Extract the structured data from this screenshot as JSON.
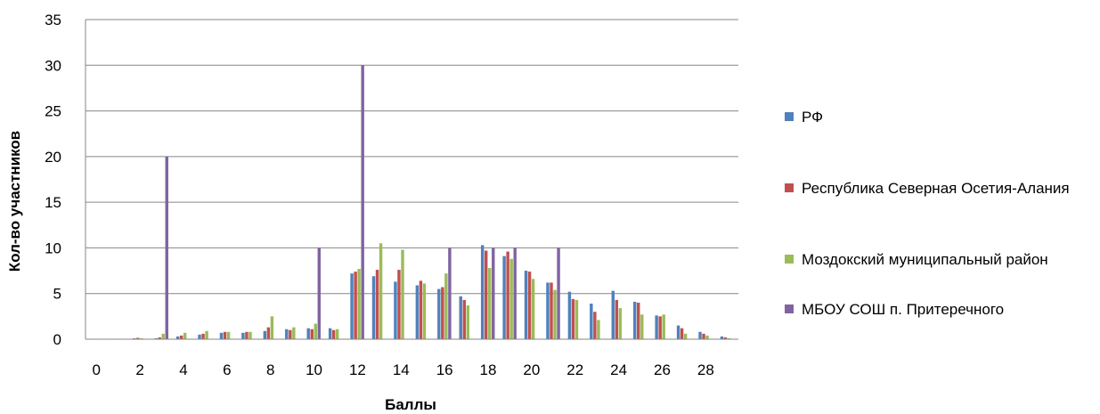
{
  "chart_data": {
    "type": "bar",
    "title": "",
    "xlabel": "Баллы",
    "ylabel": "Кол-во участников",
    "ylim": [
      0,
      35
    ],
    "yticks": [
      0,
      5,
      10,
      15,
      20,
      25,
      30,
      35
    ],
    "grid": true,
    "legend_position": "right",
    "categories": [
      "0",
      "1",
      "2",
      "3",
      "4",
      "5",
      "6",
      "7",
      "8",
      "9",
      "10",
      "11",
      "12",
      "13",
      "14",
      "15",
      "16",
      "17",
      "18",
      "19",
      "20",
      "21",
      "22",
      "23",
      "24",
      "25",
      "26",
      "27",
      "28",
      "29"
    ],
    "x_tick_labels": [
      "0",
      "2",
      "4",
      "6",
      "8",
      "10",
      "12",
      "14",
      "16",
      "18",
      "20",
      "22",
      "24",
      "26",
      "28"
    ],
    "series": [
      {
        "name": "РФ",
        "color": "#4F81BD",
        "values": [
          0.05,
          0.05,
          0.1,
          0.1,
          0.3,
          0.5,
          0.7,
          0.7,
          0.9,
          1.1,
          1.2,
          1.2,
          7.2,
          6.9,
          6.3,
          5.9,
          5.5,
          4.7,
          10.3,
          9.1,
          7.5,
          6.2,
          5.2,
          3.9,
          5.3,
          4.1,
          2.6,
          1.5,
          0.8,
          0.3
        ]
      },
      {
        "name": "Республика Северная Осетия-Алания",
        "color": "#C0504D",
        "values": [
          0.05,
          0.05,
          0.15,
          0.2,
          0.4,
          0.6,
          0.8,
          0.8,
          1.3,
          1.0,
          1.1,
          1.0,
          7.4,
          7.6,
          7.6,
          6.4,
          5.7,
          4.3,
          9.7,
          9.6,
          7.4,
          6.2,
          4.4,
          3.0,
          4.3,
          4.0,
          2.5,
          1.2,
          0.6,
          0.2
        ]
      },
      {
        "name": "Моздокский муниципальный район",
        "color": "#9BBB59",
        "values": [
          0.05,
          0.05,
          0.1,
          0.6,
          0.7,
          0.9,
          0.8,
          0.8,
          2.5,
          1.3,
          1.7,
          1.1,
          7.7,
          10.5,
          9.8,
          6.1,
          7.2,
          3.7,
          7.8,
          8.8,
          6.6,
          5.4,
          4.3,
          2.1,
          3.4,
          2.7,
          2.7,
          0.6,
          0.4,
          0.1
        ]
      },
      {
        "name": "МБОУ СОШ п. Притеречного",
        "color": "#8064A2",
        "values": [
          0,
          0,
          0,
          20,
          0,
          0,
          0,
          0,
          0,
          0,
          10,
          0,
          30,
          0,
          0,
          0,
          10,
          0,
          10,
          10,
          0,
          10,
          0,
          0,
          0,
          0,
          0,
          0,
          0,
          0
        ]
      }
    ]
  }
}
